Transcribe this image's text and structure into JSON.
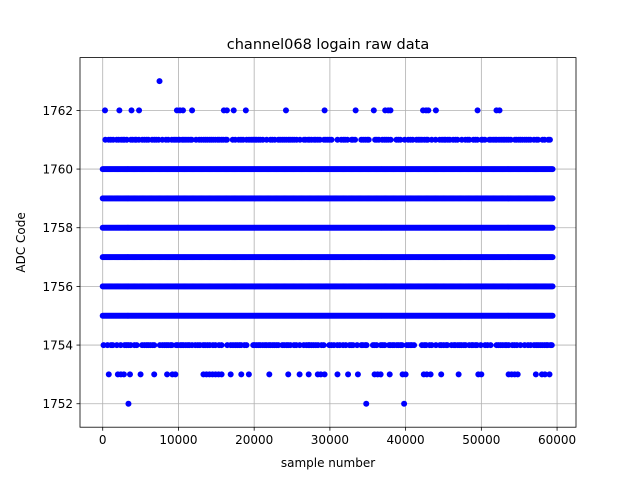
{
  "chart_data": {
    "type": "scatter",
    "title": "channel068 logain raw data",
    "xlabel": "sample number",
    "ylabel": "ADC Code",
    "xlim": [
      -3000,
      62500
    ],
    "ylim": [
      1751.2,
      1763.8
    ],
    "xticks": [
      0,
      10000,
      20000,
      30000,
      40000,
      50000,
      60000
    ],
    "xtick_labels": [
      "0",
      "10000",
      "20000",
      "30000",
      "40000",
      "50000",
      "60000"
    ],
    "yticks": [
      1752,
      1754,
      1756,
      1758,
      1760,
      1762
    ],
    "ytick_labels": [
      "1752",
      "1754",
      "1756",
      "1758",
      "1760",
      "1762"
    ],
    "grid": true,
    "marker_color": "#0000ff",
    "x_max": 59400,
    "dense_levels": [
      1755,
      1756,
      1757,
      1758,
      1759,
      1760
    ],
    "frequent_levels": [
      1754,
      1761
    ],
    "points": [
      {
        "x": 7500,
        "y": 1763
      },
      {
        "x": 300,
        "y": 1762
      },
      {
        "x": 2200,
        "y": 1762
      },
      {
        "x": 3800,
        "y": 1762
      },
      {
        "x": 4800,
        "y": 1762
      },
      {
        "x": 9800,
        "y": 1762
      },
      {
        "x": 10200,
        "y": 1762
      },
      {
        "x": 10600,
        "y": 1762
      },
      {
        "x": 11800,
        "y": 1762
      },
      {
        "x": 16000,
        "y": 1762
      },
      {
        "x": 16400,
        "y": 1762
      },
      {
        "x": 17300,
        "y": 1762
      },
      {
        "x": 18900,
        "y": 1762
      },
      {
        "x": 24200,
        "y": 1762
      },
      {
        "x": 29300,
        "y": 1762
      },
      {
        "x": 33400,
        "y": 1762
      },
      {
        "x": 35800,
        "y": 1762
      },
      {
        "x": 37300,
        "y": 1762
      },
      {
        "x": 37700,
        "y": 1762
      },
      {
        "x": 38000,
        "y": 1762
      },
      {
        "x": 42300,
        "y": 1762
      },
      {
        "x": 42700,
        "y": 1762
      },
      {
        "x": 43000,
        "y": 1762
      },
      {
        "x": 44000,
        "y": 1762
      },
      {
        "x": 49500,
        "y": 1762
      },
      {
        "x": 52000,
        "y": 1762
      },
      {
        "x": 52400,
        "y": 1762
      },
      {
        "x": 800,
        "y": 1753
      },
      {
        "x": 2000,
        "y": 1753
      },
      {
        "x": 2400,
        "y": 1753
      },
      {
        "x": 2800,
        "y": 1753
      },
      {
        "x": 3600,
        "y": 1753
      },
      {
        "x": 5000,
        "y": 1753
      },
      {
        "x": 6800,
        "y": 1753
      },
      {
        "x": 8500,
        "y": 1753
      },
      {
        "x": 9200,
        "y": 1753
      },
      {
        "x": 9600,
        "y": 1753
      },
      {
        "x": 13300,
        "y": 1753
      },
      {
        "x": 13700,
        "y": 1753
      },
      {
        "x": 14100,
        "y": 1753
      },
      {
        "x": 14500,
        "y": 1753
      },
      {
        "x": 14900,
        "y": 1753
      },
      {
        "x": 15300,
        "y": 1753
      },
      {
        "x": 15700,
        "y": 1753
      },
      {
        "x": 16900,
        "y": 1753
      },
      {
        "x": 18300,
        "y": 1753
      },
      {
        "x": 19300,
        "y": 1753
      },
      {
        "x": 22000,
        "y": 1753
      },
      {
        "x": 24500,
        "y": 1753
      },
      {
        "x": 26000,
        "y": 1753
      },
      {
        "x": 27200,
        "y": 1753
      },
      {
        "x": 28400,
        "y": 1753
      },
      {
        "x": 28800,
        "y": 1753
      },
      {
        "x": 29300,
        "y": 1753
      },
      {
        "x": 31000,
        "y": 1753
      },
      {
        "x": 32400,
        "y": 1753
      },
      {
        "x": 33700,
        "y": 1753
      },
      {
        "x": 35900,
        "y": 1753
      },
      {
        "x": 36300,
        "y": 1753
      },
      {
        "x": 36700,
        "y": 1753
      },
      {
        "x": 37900,
        "y": 1753
      },
      {
        "x": 39600,
        "y": 1753
      },
      {
        "x": 40000,
        "y": 1753
      },
      {
        "x": 42400,
        "y": 1753
      },
      {
        "x": 42800,
        "y": 1753
      },
      {
        "x": 43300,
        "y": 1753
      },
      {
        "x": 44700,
        "y": 1753
      },
      {
        "x": 47000,
        "y": 1753
      },
      {
        "x": 49600,
        "y": 1753
      },
      {
        "x": 50000,
        "y": 1753
      },
      {
        "x": 53600,
        "y": 1753
      },
      {
        "x": 54000,
        "y": 1753
      },
      {
        "x": 54400,
        "y": 1753
      },
      {
        "x": 54800,
        "y": 1753
      },
      {
        "x": 57200,
        "y": 1753
      },
      {
        "x": 58000,
        "y": 1753
      },
      {
        "x": 58400,
        "y": 1753
      },
      {
        "x": 59000,
        "y": 1753
      },
      {
        "x": 3400,
        "y": 1752
      },
      {
        "x": 34800,
        "y": 1752
      },
      {
        "x": 39800,
        "y": 1752
      }
    ]
  }
}
